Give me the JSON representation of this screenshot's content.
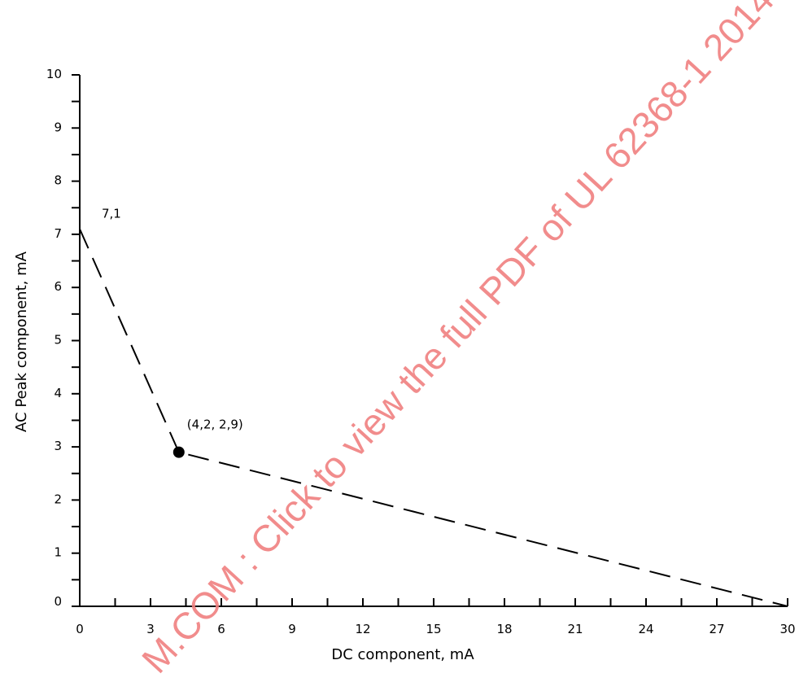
{
  "chart_data": {
    "type": "line",
    "xlabel": "DC  component,  mA",
    "ylabel": "AC  Peak  component,  mA",
    "xlim": [
      0,
      30
    ],
    "ylim": [
      0,
      10
    ],
    "x_ticks": [
      0,
      3,
      6,
      9,
      12,
      15,
      18,
      21,
      24,
      27,
      30
    ],
    "x_tick_labels": [
      "0",
      "3",
      "6",
      "9",
      "12",
      "15",
      "18",
      "21",
      "24",
      "27",
      "30"
    ],
    "y_ticks": [
      0,
      1,
      2,
      3,
      4,
      5,
      6,
      7,
      8,
      9,
      10
    ],
    "y_tick_labels": [
      "0",
      "1",
      "2",
      "3",
      "4",
      "5",
      "6",
      "7",
      "8",
      "9",
      "10"
    ],
    "grid": false,
    "series": [
      {
        "line_style": "dashed",
        "color": "#000000",
        "points": [
          {
            "x": 0,
            "y": 7.1
          },
          {
            "x": 4.2,
            "y": 2.9
          },
          {
            "x": 30,
            "y": 0
          }
        ]
      }
    ],
    "marker": {
      "x": 4.2,
      "y": 2.9
    },
    "annotations": [
      {
        "text": "7,1",
        "x": 0,
        "y": 7.1
      },
      {
        "text": "(4,2,  2,9)",
        "x": 4.2,
        "y": 2.9
      }
    ]
  },
  "watermark": "M.COM : Click to view the full PDF of UL 62368-1 2014",
  "watermark_color": "#f08080"
}
